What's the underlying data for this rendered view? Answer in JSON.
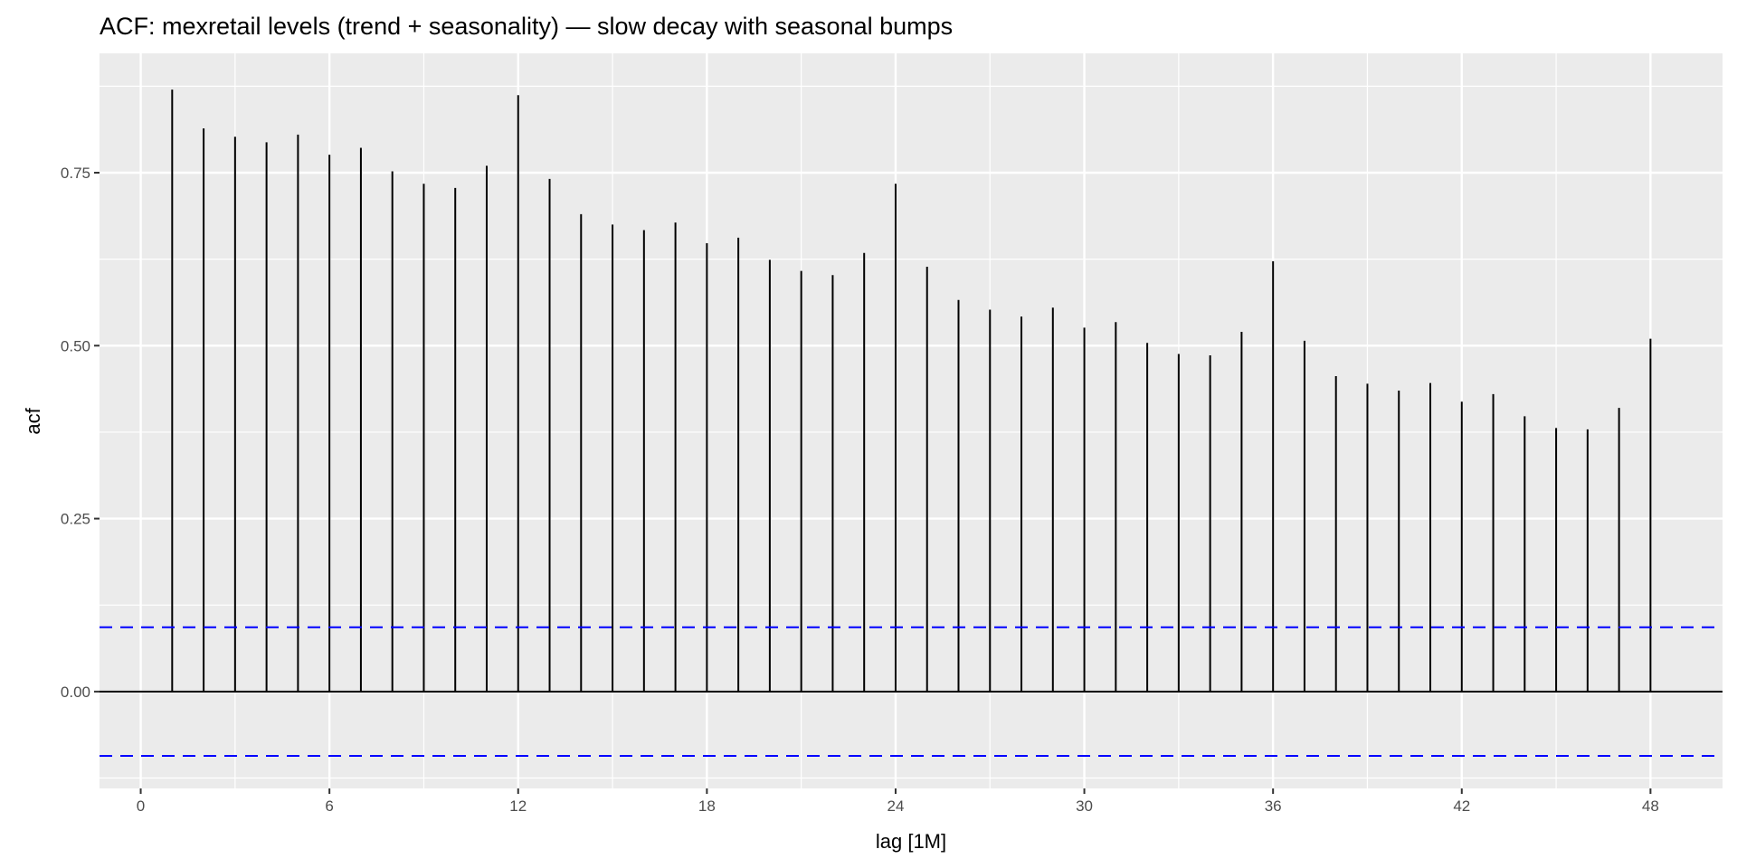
{
  "chart_data": {
    "type": "bar",
    "title": "ACF: mexretail levels (trend + seasonality) — slow decay with seasonal bumps",
    "xlabel": "lag [1M]",
    "ylabel": "acf",
    "x": [
      1,
      2,
      3,
      4,
      5,
      6,
      7,
      8,
      9,
      10,
      11,
      12,
      13,
      14,
      15,
      16,
      17,
      18,
      19,
      20,
      21,
      22,
      23,
      24,
      25,
      26,
      27,
      28,
      29,
      30,
      31,
      32,
      33,
      34,
      35,
      36,
      37,
      38,
      39,
      40,
      41,
      42,
      43,
      44,
      45,
      46,
      47,
      48
    ],
    "values": [
      0.87,
      0.814,
      0.802,
      0.794,
      0.805,
      0.776,
      0.786,
      0.752,
      0.734,
      0.728,
      0.76,
      0.862,
      0.741,
      0.69,
      0.675,
      0.667,
      0.678,
      0.648,
      0.656,
      0.624,
      0.608,
      0.602,
      0.634,
      0.734,
      0.614,
      0.566,
      0.552,
      0.542,
      0.555,
      0.526,
      0.534,
      0.504,
      0.488,
      0.486,
      0.52,
      0.622,
      0.507,
      0.456,
      0.445,
      0.435,
      0.446,
      0.419,
      0.43,
      0.398,
      0.381,
      0.379,
      0.41,
      0.51
    ],
    "confidence_bound": 0.093,
    "xlim": [
      -1.31,
      50.29
    ],
    "ylim": [
      -0.14,
      0.9225
    ],
    "xticks": [
      0,
      6,
      12,
      18,
      24,
      30,
      36,
      42,
      48
    ],
    "xtick_labels": [
      "0",
      "6",
      "12",
      "18",
      "24",
      "30",
      "36",
      "42",
      "48"
    ],
    "yticks": [
      0,
      0.25,
      0.5,
      0.75
    ],
    "ytick_labels": [
      "0.00",
      "0.25",
      "0.50",
      "0.75"
    ],
    "grid": true,
    "colors": {
      "panel": "#EBEBEB",
      "grid": "#FFFFFF",
      "bar": "#000000",
      "ci": "#0000FF"
    }
  }
}
